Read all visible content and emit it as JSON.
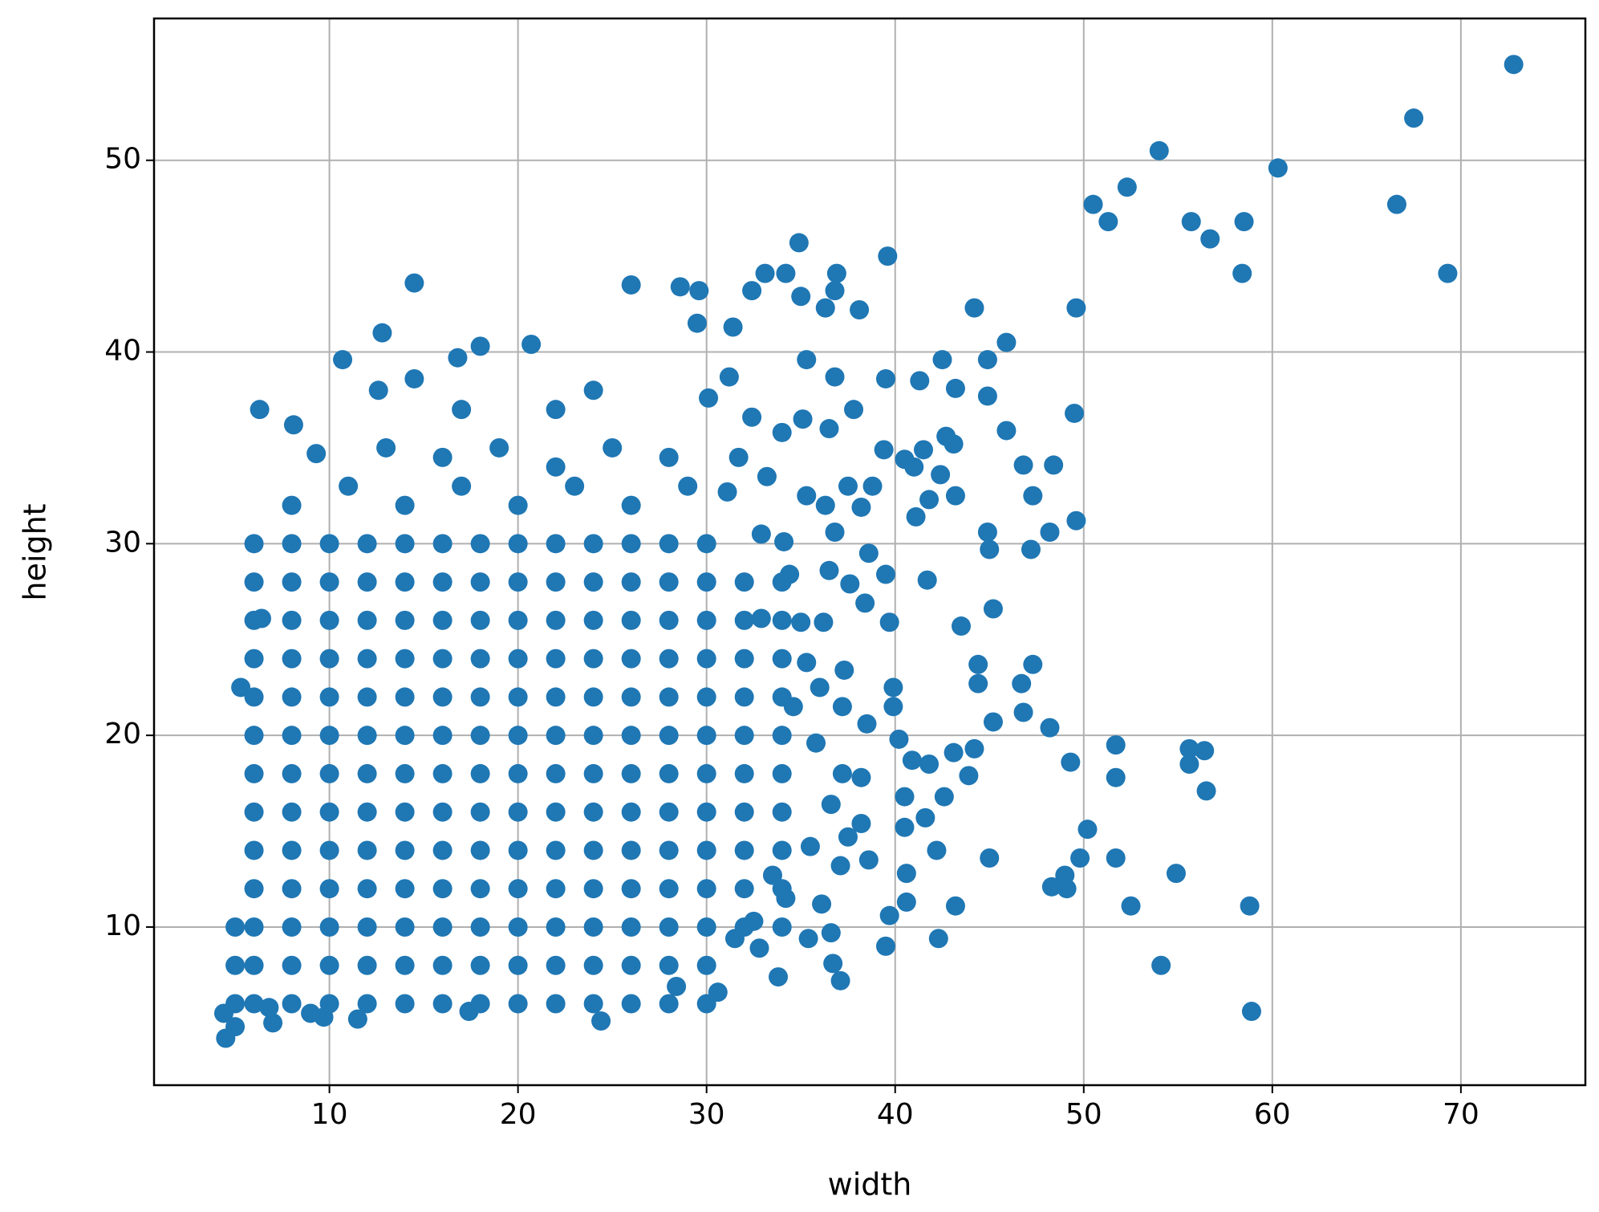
{
  "chart_data": {
    "type": "scatter",
    "xlabel": "width",
    "ylabel": "height",
    "color": "#1f77b4",
    "grid": true,
    "xlim": [
      0.7,
      76.6
    ],
    "ylim": [
      1.75,
      57.4
    ],
    "xticks": [
      10,
      20,
      30,
      40,
      50,
      60,
      70
    ],
    "yticks": [
      10,
      20,
      30,
      40,
      50
    ],
    "x": [
      72.8,
      67.5,
      66.6,
      69.3,
      60.3,
      54,
      52.3,
      50.5,
      51.3,
      55.7,
      56.7,
      58.5,
      58.4,
      49.6,
      49.5,
      49.6,
      48.4,
      47.3,
      46.8,
      47.2,
      48.2,
      45.9,
      45.9,
      44.2,
      44.9,
      44.9,
      44.9,
      45,
      45.2,
      43.5,
      44.4,
      44.4,
      46.7,
      47.3,
      46.8,
      45.2,
      48.2,
      49.3,
      51.7,
      51.7,
      55.6,
      56.4,
      55.6,
      56.5,
      50.2,
      51.7,
      49.8,
      49,
      48.3,
      49.1,
      54.9,
      52.5,
      58.8,
      54.1,
      58.9,
      45,
      43.2,
      42.3,
      39.5,
      39.6,
      34.9,
      33.1,
      34.2,
      36.9,
      36.8,
      38.1,
      36.3,
      35,
      14.5,
      26,
      28.6,
      29.6,
      29.5,
      31.4,
      32.4,
      12.8,
      10.7,
      12.6,
      14.5,
      6.3,
      8.1,
      9.3,
      5.3,
      6.4,
      20.7,
      18,
      16.8,
      39.5,
      41.3,
      42.5,
      43.2,
      42.7,
      41.5,
      41,
      43.1,
      42.4,
      43.2,
      41.8,
      39.5,
      41.7,
      41.1,
      40.5,
      39.4,
      38.8,
      38.2,
      38.6,
      37.6,
      38.4,
      36.2,
      39.7,
      39.9,
      39.9,
      38.5,
      40.2,
      40.9,
      41.8,
      40.5,
      40.5,
      41.6,
      42.2,
      40.6,
      40.6,
      39.7,
      37.1,
      36.6,
      35.4,
      33.8,
      36.7,
      28.4,
      30.6,
      24.4,
      17.4,
      11.5,
      9.7,
      6.8,
      4.5,
      5,
      4.4,
      43.1,
      42.6,
      43.9,
      44.2,
      35.3,
      31.2,
      30.1,
      32.4,
      34,
      35.1,
      36.5,
      31.7,
      36.8,
      37.8,
      33.2,
      35.3,
      36.3,
      37.5,
      31.1,
      32.9,
      34.1,
      36.8,
      34.4,
      36.5,
      32.9,
      35,
      37.3,
      36,
      35.3,
      34.6,
      37.2,
      35.8,
      37.2,
      38.2,
      36.6,
      38.2,
      37.5,
      38.6,
      37.1,
      36.1,
      34.2,
      35.5,
      33.5,
      32.5,
      32.8,
      31.5,
      8,
      11,
      14,
      17,
      20,
      23,
      26,
      29,
      13,
      16,
      19,
      22,
      25,
      28,
      17,
      22,
      24,
      5,
      5,
      5,
      7,
      9,
      6,
      8,
      10,
      12,
      14,
      16,
      18,
      20,
      22,
      24,
      26,
      28,
      30,
      6,
      8,
      10,
      12,
      14,
      16,
      18,
      20,
      22,
      24,
      26,
      28,
      30,
      6,
      8,
      10,
      12,
      14,
      16,
      18,
      20,
      22,
      24,
      26,
      28,
      30,
      6,
      8,
      10,
      12,
      14,
      16,
      18,
      20,
      22,
      24,
      26,
      28,
      30,
      6,
      8,
      10,
      12,
      14,
      16,
      18,
      20,
      22,
      24,
      26,
      28,
      30,
      6,
      8,
      10,
      12,
      14,
      16,
      18,
      20,
      22,
      24,
      26,
      28,
      30,
      6,
      8,
      10,
      12,
      14,
      16,
      18,
      20,
      22,
      24,
      26,
      28,
      30,
      6,
      8,
      10,
      12,
      14,
      16,
      18,
      20,
      22,
      24,
      26,
      28,
      30,
      6,
      8,
      10,
      12,
      14,
      16,
      18,
      20,
      22,
      24,
      26,
      28,
      30,
      6,
      8,
      10,
      12,
      14,
      16,
      18,
      20,
      22,
      24,
      26,
      28,
      30,
      6,
      8,
      10,
      12,
      14,
      16,
      18,
      20,
      22,
      24,
      26,
      28,
      30,
      6,
      8,
      10,
      12,
      14,
      16,
      18,
      20,
      22,
      24,
      26,
      28,
      30,
      6,
      8,
      10,
      12,
      14,
      16,
      18,
      20,
      22,
      24,
      26,
      28,
      30,
      32,
      34,
      32,
      34,
      32,
      34,
      32,
      34,
      32,
      34,
      32,
      34,
      32,
      34,
      32,
      34,
      32,
      34,
      32,
      34
    ],
    "values": [
      55,
      52.2,
      47.7,
      44.1,
      49.6,
      50.5,
      48.6,
      47.7,
      46.8,
      46.8,
      45.9,
      46.8,
      44.1,
      42.3,
      36.8,
      31.2,
      34.1,
      32.5,
      34.1,
      29.7,
      30.6,
      40.5,
      35.9,
      42.3,
      39.6,
      37.7,
      30.6,
      29.7,
      26.6,
      25.7,
      23.7,
      22.7,
      22.7,
      23.7,
      21.2,
      20.7,
      20.4,
      18.6,
      19.5,
      17.8,
      19.3,
      19.2,
      18.5,
      17.1,
      15.1,
      13.6,
      13.6,
      12.7,
      12.1,
      12,
      12.8,
      11.1,
      11.1,
      8,
      5.6,
      13.6,
      11.1,
      9.4,
      9,
      45,
      45.7,
      44.1,
      44.1,
      44.1,
      43.2,
      42.2,
      42.3,
      42.9,
      43.6,
      43.5,
      43.4,
      43.2,
      41.5,
      41.3,
      43.2,
      41,
      39.6,
      38,
      38.6,
      37,
      36.2,
      34.7,
      22.5,
      26.1,
      40.4,
      40.3,
      39.7,
      38.6,
      38.5,
      39.6,
      38.1,
      35.6,
      34.9,
      34,
      35.2,
      33.6,
      32.5,
      32.3,
      28.4,
      28.1,
      31.4,
      34.4,
      34.9,
      33,
      31.9,
      29.5,
      27.9,
      26.9,
      25.9,
      25.9,
      22.5,
      21.5,
      20.6,
      19.8,
      18.7,
      18.5,
      16.8,
      15.2,
      15.7,
      14,
      12.8,
      11.3,
      10.6,
      7.2,
      9.7,
      9.4,
      7.4,
      8.1,
      6.9,
      6.6,
      5.1,
      5.6,
      5.2,
      5.3,
      5.8,
      4.2,
      4.8,
      5.5,
      19.1,
      16.8,
      17.9,
      19.3,
      39.6,
      38.7,
      37.6,
      36.6,
      35.8,
      36.5,
      36,
      34.5,
      38.7,
      37,
      33.5,
      32.5,
      32,
      33,
      32.7,
      30.5,
      30.1,
      30.6,
      28.4,
      28.6,
      26.1,
      25.9,
      23.4,
      22.5,
      23.8,
      21.5,
      21.5,
      19.6,
      18,
      17.8,
      16.4,
      15.4,
      14.7,
      13.5,
      13.2,
      11.2,
      11.5,
      14.2,
      12.7,
      10.3,
      8.9,
      9.4,
      32,
      33,
      32,
      33,
      32,
      33,
      32,
      33,
      35,
      34.5,
      35,
      34,
      35,
      34.5,
      37,
      37,
      38,
      6,
      8,
      10,
      5,
      5.5,
      6,
      6,
      6,
      6,
      6,
      6,
      6,
      6,
      6,
      6,
      6,
      6,
      6,
      8,
      8,
      8,
      8,
      8,
      8,
      8,
      8,
      8,
      8,
      8,
      8,
      8,
      10,
      10,
      10,
      10,
      10,
      10,
      10,
      10,
      10,
      10,
      10,
      10,
      10,
      12,
      12,
      12,
      12,
      12,
      12,
      12,
      12,
      12,
      12,
      12,
      12,
      12,
      14,
      14,
      14,
      14,
      14,
      14,
      14,
      14,
      14,
      14,
      14,
      14,
      14,
      16,
      16,
      16,
      16,
      16,
      16,
      16,
      16,
      16,
      16,
      16,
      16,
      16,
      18,
      18,
      18,
      18,
      18,
      18,
      18,
      18,
      18,
      18,
      18,
      18,
      18,
      20,
      20,
      20,
      20,
      20,
      20,
      20,
      20,
      20,
      20,
      20,
      20,
      20,
      22,
      22,
      22,
      22,
      22,
      22,
      22,
      22,
      22,
      22,
      22,
      22,
      22,
      24,
      24,
      24,
      24,
      24,
      24,
      24,
      24,
      24,
      24,
      24,
      24,
      24,
      26,
      26,
      26,
      26,
      26,
      26,
      26,
      26,
      26,
      26,
      26,
      26,
      26,
      28,
      28,
      28,
      28,
      28,
      28,
      28,
      28,
      28,
      28,
      28,
      28,
      28,
      30,
      30,
      30,
      30,
      30,
      30,
      30,
      30,
      30,
      30,
      30,
      30,
      30,
      10,
      10,
      12,
      12,
      14,
      14,
      16,
      16,
      18,
      18,
      20,
      20,
      22,
      22,
      24,
      24,
      26,
      26,
      28,
      28
    ]
  }
}
